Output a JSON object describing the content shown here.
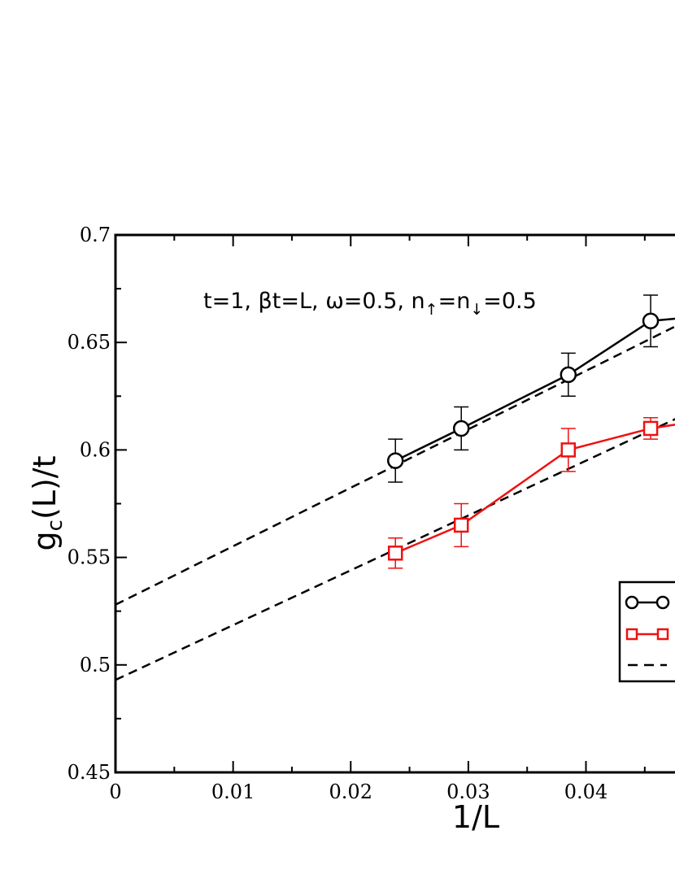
{
  "chart_data": {
    "type": "scatter",
    "xlabel": "1/L",
    "ylabel": "g_c(L)/t",
    "annotation": {
      "text_before": "t=1, βt=L, ω=0.5, n",
      "sub_up": "↑",
      "eq": "=n",
      "sub_down": "↓",
      "text_after": "=0.5"
    },
    "xlim": [
      0,
      0.0484
    ],
    "ylim": [
      0.45,
      0.7
    ],
    "x_ticks": [
      0,
      0.01,
      0.02,
      0.03,
      0.04
    ],
    "x_tick_labels": [
      "0",
      "0.01",
      "0.02",
      "0.03",
      "0.04"
    ],
    "y_ticks": [
      0.45,
      0.5,
      0.55,
      0.6,
      0.65,
      0.7
    ],
    "y_tick_labels": [
      "0.45",
      "0.5",
      "0.55",
      "0.6",
      "0.65",
      "0.7"
    ],
    "grid": false,
    "legend_position": "right (partially cropped)",
    "series": [
      {
        "marker": "circle",
        "color": "#000000",
        "x": [
          0.0238,
          0.0294,
          0.0385,
          0.0455
        ],
        "y": [
          0.595,
          0.61,
          0.635,
          0.66
        ],
        "err": [
          0.01,
          0.01,
          0.01,
          0.012
        ],
        "extends_right": 0.663
      },
      {
        "marker": "square",
        "color": "#ee1111",
        "x": [
          0.0238,
          0.0294,
          0.0385,
          0.0455
        ],
        "y": [
          0.552,
          0.565,
          0.6,
          0.61
        ],
        "err": [
          0.007,
          0.01,
          0.01,
          0.005
        ],
        "extends_right": 0.615
      }
    ],
    "fits": [
      {
        "style": "dashed",
        "color": "#000000",
        "intercept": 0.528,
        "slope": 2.72
      },
      {
        "style": "dashed",
        "color": "#000000",
        "intercept": 0.493,
        "slope": 2.55
      }
    ]
  }
}
